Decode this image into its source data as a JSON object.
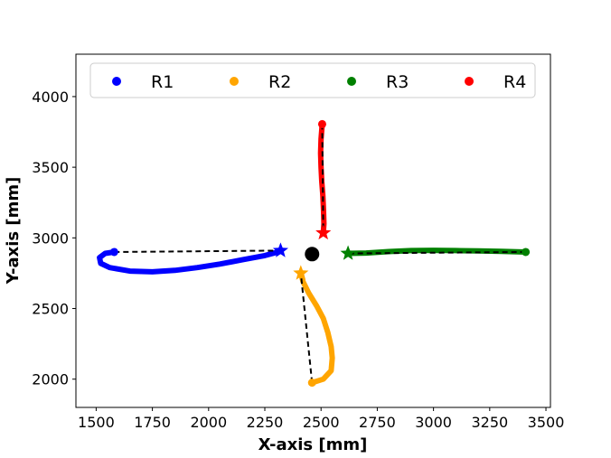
{
  "chart_data": {
    "type": "scatter",
    "title": "",
    "xlabel": "X-axis [mm]",
    "ylabel": "Y-axis [mm]",
    "xlim": [
      1410,
      3520
    ],
    "ylim": [
      1800,
      4300
    ],
    "xticks": [
      1500,
      1750,
      2000,
      2250,
      2500,
      2750,
      3000,
      3250,
      3500
    ],
    "yticks": [
      2000,
      2500,
      3000,
      3500,
      4000
    ],
    "grid": false,
    "legend": {
      "placement": "top",
      "ncol": 4
    },
    "center_marker": {
      "x": 2460,
      "y": 2885,
      "color": "#000000"
    },
    "series": [
      {
        "name": "R1",
        "color": "#0000ff",
        "start": {
          "x": 1580,
          "y": 2900
        },
        "goal": {
          "x": 2320,
          "y": 2910
        },
        "path": [
          [
            1580,
            2900
          ],
          [
            1540,
            2890
          ],
          [
            1515,
            2860
          ],
          [
            1520,
            2820
          ],
          [
            1560,
            2790
          ],
          [
            1650,
            2765
          ],
          [
            1750,
            2760
          ],
          [
            1850,
            2770
          ],
          [
            1950,
            2790
          ],
          [
            2050,
            2815
          ],
          [
            2150,
            2845
          ],
          [
            2250,
            2875
          ],
          [
            2320,
            2905
          ]
        ]
      },
      {
        "name": "R2",
        "color": "#ffa500",
        "start": {
          "x": 2460,
          "y": 1975
        },
        "goal": {
          "x": 2410,
          "y": 2750
        },
        "path": [
          [
            2460,
            1975
          ],
          [
            2510,
            2000
          ],
          [
            2545,
            2060
          ],
          [
            2550,
            2150
          ],
          [
            2545,
            2230
          ],
          [
            2530,
            2330
          ],
          [
            2510,
            2430
          ],
          [
            2480,
            2520
          ],
          [
            2445,
            2610
          ],
          [
            2420,
            2690
          ],
          [
            2410,
            2750
          ]
        ]
      },
      {
        "name": "R3",
        "color": "#008000",
        "start": {
          "x": 3410,
          "y": 2900
        },
        "goal": {
          "x": 2620,
          "y": 2890
        },
        "path": [
          [
            3410,
            2900
          ],
          [
            3300,
            2905
          ],
          [
            3200,
            2908
          ],
          [
            3100,
            2910
          ],
          [
            3000,
            2912
          ],
          [
            2900,
            2910
          ],
          [
            2800,
            2903
          ],
          [
            2700,
            2893
          ],
          [
            2620,
            2890
          ]
        ]
      },
      {
        "name": "R4",
        "color": "#ff0000",
        "start": {
          "x": 2505,
          "y": 3805
        },
        "goal": {
          "x": 2510,
          "y": 3035
        },
        "path": [
          [
            2505,
            3805
          ],
          [
            2500,
            3700
          ],
          [
            2498,
            3600
          ],
          [
            2500,
            3500
          ],
          [
            2503,
            3400
          ],
          [
            2508,
            3300
          ],
          [
            2511,
            3200
          ],
          [
            2513,
            3100
          ],
          [
            2510,
            3035
          ]
        ]
      }
    ]
  }
}
